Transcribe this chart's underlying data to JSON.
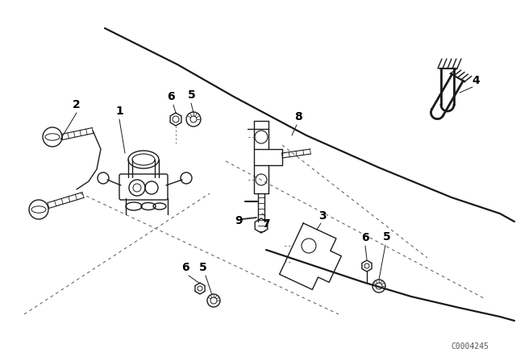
{
  "bg_color": "#ffffff",
  "line_color": "#1a1a1a",
  "label_color": "#000000",
  "watermark": "C0004245",
  "fig_width": 6.4,
  "fig_height": 4.48,
  "dpi": 100
}
